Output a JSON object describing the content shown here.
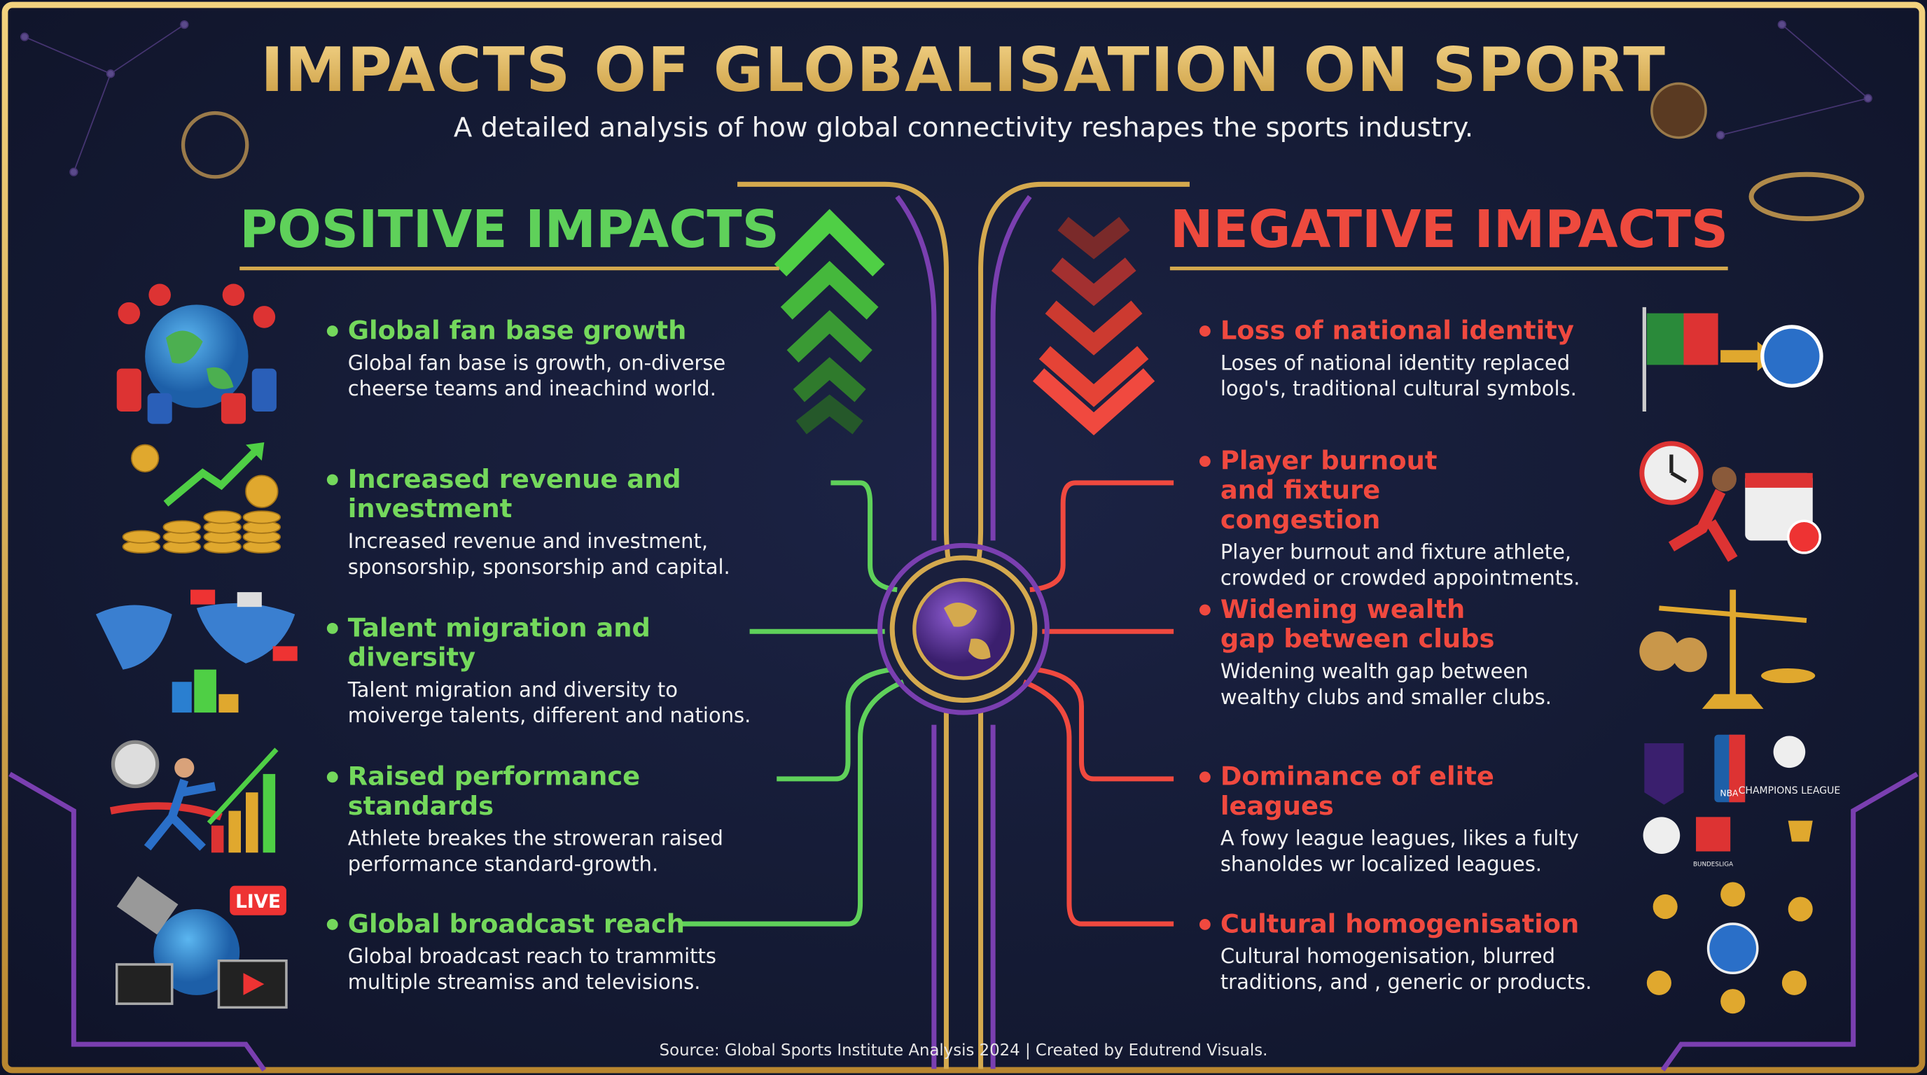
{
  "header": {
    "title": "IMPACTS OF GLOBALISATION ON SPORT",
    "subtitle": "A detailed analysis of how global connectivity reshapes the sports industry."
  },
  "positive": {
    "heading": "POSITIVE IMPACTS",
    "items": [
      {
        "title": "Global fan base growth",
        "text": "Global fan base is growth, on-diverse cheerse teams and ineachind world."
      },
      {
        "title": "Increased revenue and investment",
        "text": "Increased revenue and investment, sponsorship, sponsorship and capital."
      },
      {
        "title": "Talent migration and diversity",
        "text": "Talent migration and diversity to moiverge talents, different and nations."
      },
      {
        "title": "Raised performance standards",
        "text": "Athlete breakes the stroweran raised performance standard-growth."
      },
      {
        "title": "Global broadcast reach",
        "text": "Global broadcast reach to trammitts multiple streamiss and televisions."
      }
    ]
  },
  "negative": {
    "heading": "NEGATIVE IMPACTS",
    "items": [
      {
        "title": "Loss of national identity",
        "text": "Loses of national identity replaced logo's, traditional cultural symbols."
      },
      {
        "title": "Player burnout and fixture congestion",
        "text": "Player burnout and fixture athlete, crowded or crowded appointments."
      },
      {
        "title": "Widening wealth gap between clubs",
        "text": "Widening wealth gap between wealthy clubs and smaller clubs."
      },
      {
        "title": "Dominance of elite leagues",
        "text": "A fowy league leagues, likes a fulty shanoldes wr localized leagues."
      },
      {
        "title": "Cultural homogenisation",
        "text": "Cultural homogenisation, blurred traditions, and , generic or products."
      }
    ]
  },
  "icons": {
    "live": "LIVE",
    "nba": "NBA",
    "champions": "CHAMPIONS LEAGUE",
    "bundesliga": "BUNDESLIGA"
  },
  "footer": {
    "source": "Source: Global Sports Institute Analysis 2024 | Created by Edutrend Visuals."
  }
}
